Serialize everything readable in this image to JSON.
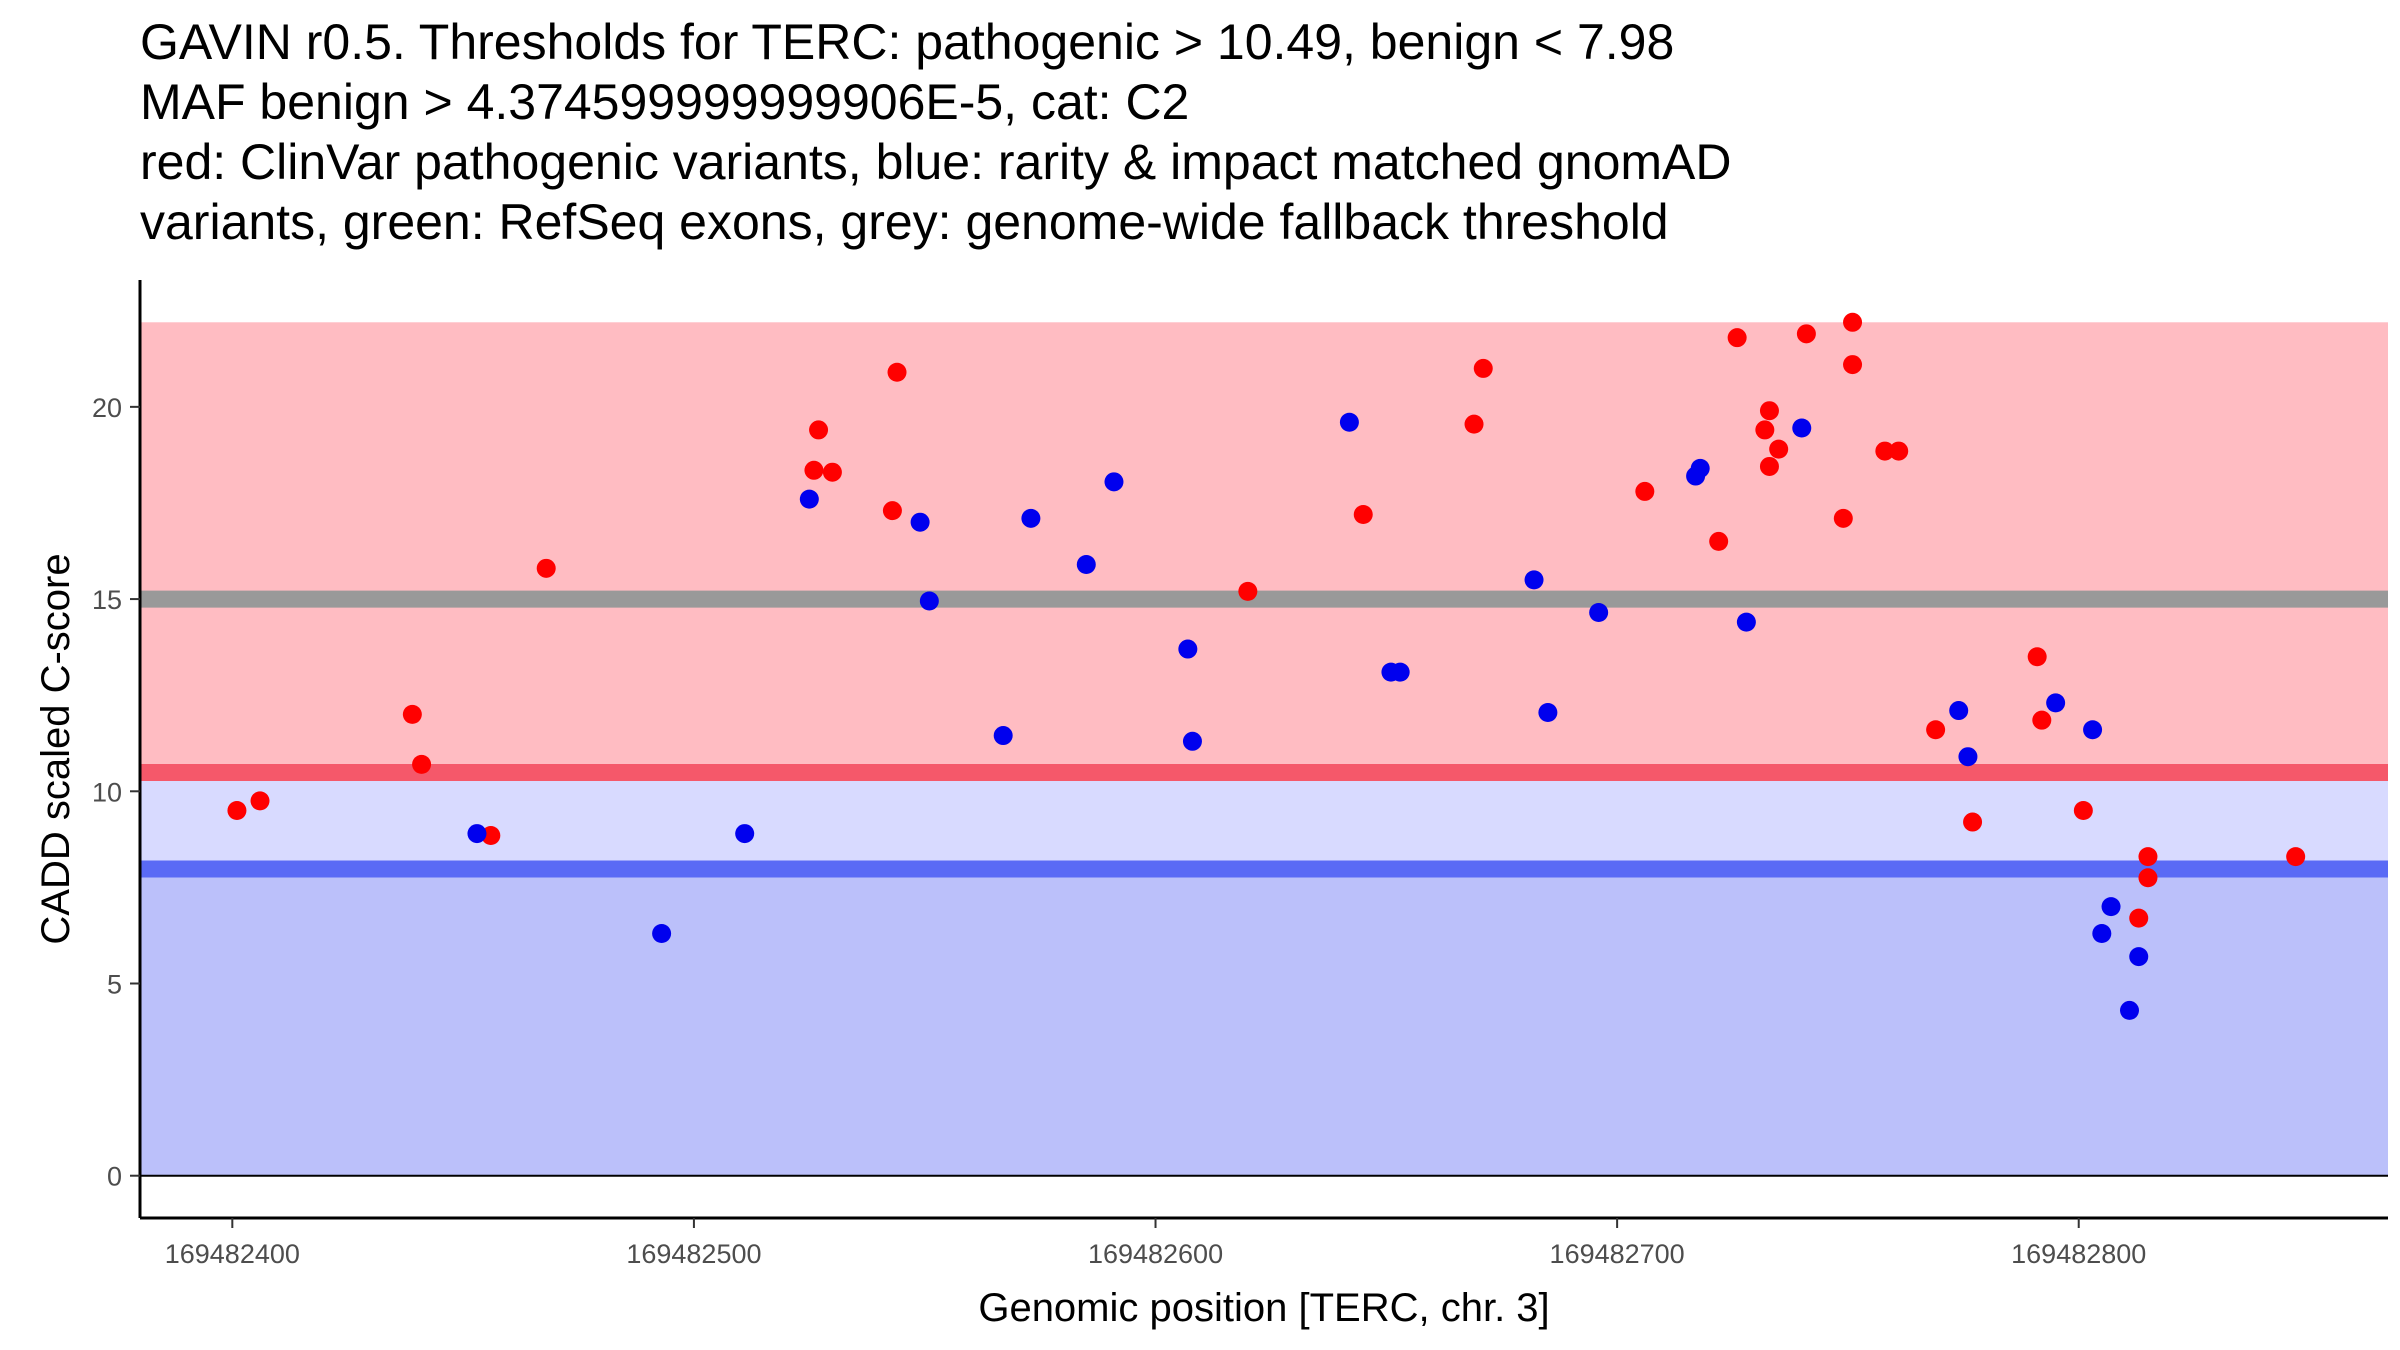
{
  "title_lines": [
    "GAVIN r0.5. Thresholds for TERC: pathogenic > 10.49, benign < 7.98",
    "MAF benign > 4.374599999999906E-5, cat: C2",
    "red: ClinVar pathogenic variants, blue: rarity & impact matched gnomAD",
    "variants, green: RefSeq exons, grey: genome-wide fallback threshold"
  ],
  "colors": {
    "pathogenic_zone": "#ffbcc2",
    "middle_zone": "#d8daff",
    "benign_zone": "#bbc0fa",
    "pathogenic_line": "#f5586a",
    "benign_line": "#5a6af5",
    "fallback_line": "#999999",
    "clinvar_point": "#ff0000",
    "gnomad_point": "#0000ee"
  },
  "chart_data": {
    "type": "scatter",
    "title": "GAVIN r0.5. Thresholds for TERC: pathogenic > 10.49, benign < 7.98",
    "xlabel": "Genomic position [TERC, chr. 3]",
    "ylabel": "CADD scaled C-score",
    "xlim": [
      169482380,
      169482867
    ],
    "ylim": [
      -1.1,
      23.3
    ],
    "x_ticks": [
      169482400,
      169482500,
      169482600,
      169482700,
      169482800
    ],
    "x_tick_labels": [
      "169482400",
      "169482500",
      "169482600",
      "169482700",
      "169482800"
    ],
    "y_ticks": [
      0,
      5,
      10,
      15,
      20
    ],
    "y_tick_labels": [
      "0",
      "5",
      "10",
      "15",
      "20"
    ],
    "bands": [
      {
        "name": "benign zone",
        "ymin": 0,
        "ymax": 7.98
      },
      {
        "name": "intermediate zone",
        "ymin": 7.98,
        "ymax": 10.49
      },
      {
        "name": "pathogenic zone",
        "ymin": 10.49,
        "ymax": 22.2
      }
    ],
    "threshold_lines": [
      {
        "name": "genome-wide fallback threshold",
        "y": 15.0
      },
      {
        "name": "pathogenic threshold",
        "y": 10.49
      },
      {
        "name": "benign threshold",
        "y": 7.98
      }
    ],
    "series": [
      {
        "name": "ClinVar pathogenic variants",
        "points": [
          [
            169482401,
            9.5
          ],
          [
            169482406,
            9.75
          ],
          [
            169482439,
            12.0
          ],
          [
            169482441,
            10.7
          ],
          [
            169482456,
            8.85
          ],
          [
            169482468,
            15.8
          ],
          [
            169482526,
            18.35
          ],
          [
            169482527,
            19.4
          ],
          [
            169482530,
            18.3
          ],
          [
            169482543,
            17.3
          ],
          [
            169482544,
            20.9
          ],
          [
            169482620,
            15.2
          ],
          [
            169482645,
            17.2
          ],
          [
            169482669,
            19.55
          ],
          [
            169482671,
            21.0
          ],
          [
            169482706,
            17.8
          ],
          [
            169482722,
            16.5
          ],
          [
            169482726,
            21.8
          ],
          [
            169482732,
            19.4
          ],
          [
            169482733,
            19.9
          ],
          [
            169482733,
            18.45
          ],
          [
            169482735,
            18.9
          ],
          [
            169482741,
            21.9
          ],
          [
            169482749,
            17.1
          ],
          [
            169482751,
            22.2
          ],
          [
            169482751,
            21.1
          ],
          [
            169482758,
            18.85
          ],
          [
            169482761,
            18.85
          ],
          [
            169482769,
            11.6
          ],
          [
            169482777,
            9.2
          ],
          [
            169482791,
            13.5
          ],
          [
            169482792,
            11.85
          ],
          [
            169482801,
            9.5
          ],
          [
            169482813,
            6.7
          ],
          [
            169482815,
            8.3
          ],
          [
            169482815,
            7.75
          ],
          [
            169482847,
            8.3
          ]
        ]
      },
      {
        "name": "rarity & impact matched gnomAD variants",
        "points": [
          [
            169482453,
            8.9
          ],
          [
            169482493,
            6.3
          ],
          [
            169482511,
            8.9
          ],
          [
            169482525,
            17.6
          ],
          [
            169482549,
            17.0
          ],
          [
            169482551,
            14.95
          ],
          [
            169482567,
            11.45
          ],
          [
            169482573,
            17.1
          ],
          [
            169482585,
            15.9
          ],
          [
            169482591,
            18.05
          ],
          [
            169482607,
            13.7
          ],
          [
            169482608,
            11.3
          ],
          [
            169482642,
            19.6
          ],
          [
            169482651,
            13.1
          ],
          [
            169482653,
            13.1
          ],
          [
            169482682,
            15.5
          ],
          [
            169482685,
            12.05
          ],
          [
            169482696,
            14.65
          ],
          [
            169482717,
            18.2
          ],
          [
            169482718,
            18.4
          ],
          [
            169482728,
            14.4
          ],
          [
            169482740,
            19.45
          ],
          [
            169482774,
            12.1
          ],
          [
            169482776,
            10.9
          ],
          [
            169482795,
            12.3
          ],
          [
            169482803,
            11.6
          ],
          [
            169482805,
            6.3
          ],
          [
            169482807,
            7.0
          ],
          [
            169482811,
            4.3
          ],
          [
            169482813,
            5.7
          ]
        ]
      }
    ]
  }
}
